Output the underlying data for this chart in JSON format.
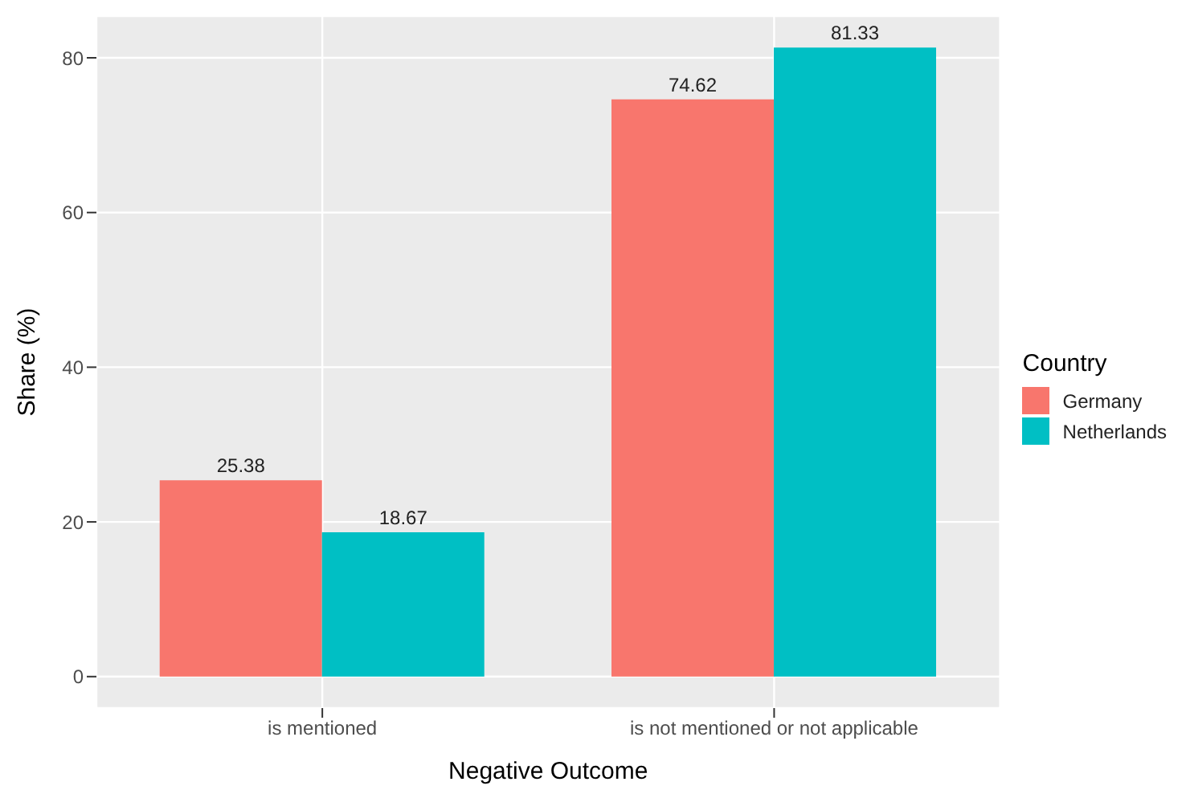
{
  "chart_data": {
    "type": "bar",
    "xlabel": "Negative Outcome",
    "ylabel": "Share (%)",
    "legend_title": "Country",
    "categories": [
      "is mentioned",
      "is not mentioned or not applicable"
    ],
    "series": [
      {
        "name": "Germany",
        "color": "#f8766d",
        "values": [
          25.38,
          74.62
        ]
      },
      {
        "name": "Netherlands",
        "color": "#00bfc4",
        "values": [
          18.67,
          81.33
        ]
      }
    ],
    "ylim": [
      -4.07,
      85.4
    ],
    "yticks": [
      0,
      20,
      40,
      60,
      80
    ],
    "grid": true,
    "legend": "right",
    "data_labels": true
  }
}
